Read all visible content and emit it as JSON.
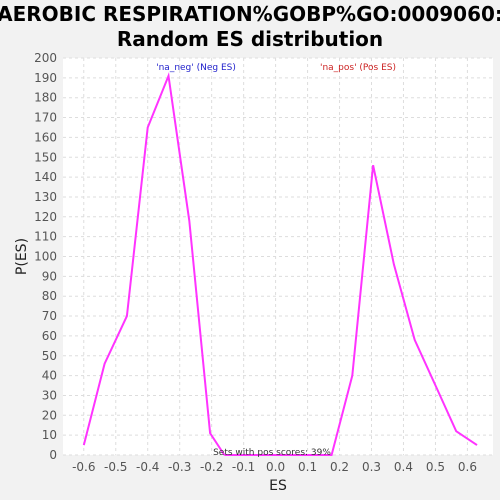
{
  "chart_data": {
    "type": "line",
    "title_line1": "AEROBIC RESPIRATION%GOBP%GO:0009060:",
    "title_line2": "Random ES distribution",
    "xlabel": "ES",
    "ylabel": "P(ES)",
    "xlim": [
      -0.665,
      0.68
    ],
    "ylim": [
      0,
      200
    ],
    "xticks": [
      "-0.6",
      "-0.5",
      "-0.4",
      "-0.3",
      "-0.2",
      "-0.1",
      "0.0",
      "0.1",
      "0.2",
      "0.3",
      "0.4",
      "0.5",
      "0.6"
    ],
    "yticks": [
      "0",
      "10",
      "20",
      "30",
      "40",
      "50",
      "60",
      "70",
      "80",
      "90",
      "100",
      "110",
      "120",
      "130",
      "140",
      "150",
      "160",
      "170",
      "180",
      "190",
      "200"
    ],
    "grid": true,
    "line_color": "#ff33ff",
    "neg_series": {
      "label": "'na_neg' (Neg ES)",
      "color": "#2222cc",
      "x": [
        -0.6,
        -0.535,
        -0.465,
        -0.4,
        -0.335,
        -0.27,
        -0.205,
        -0.16
      ],
      "y": [
        5,
        46,
        70,
        165,
        191,
        118,
        11,
        0
      ]
    },
    "pos_series": {
      "label": "'na_pos' (Pos ES)",
      "color": "#cc2222",
      "x": [
        -0.16,
        0.175,
        0.24,
        0.305,
        0.37,
        0.435,
        0.5,
        0.565,
        0.63
      ],
      "y": [
        0,
        0,
        40,
        146,
        96,
        58,
        35,
        12,
        5
      ]
    },
    "annotation": "Sets with pos scores: 39%"
  }
}
